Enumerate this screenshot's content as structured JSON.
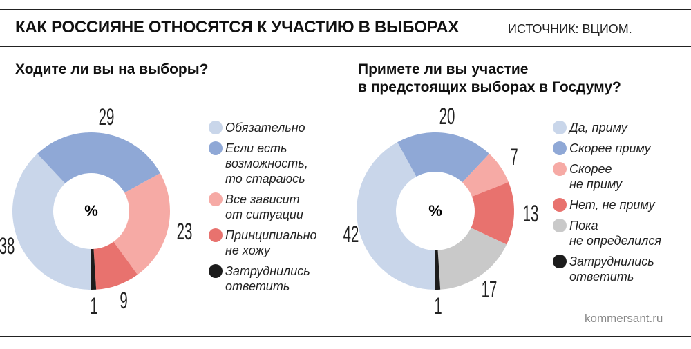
{
  "header": {
    "title": "КАК РОССИЯНЕ ОТНОСЯТСЯ К УЧАСТИЮ В ВЫБОРАХ",
    "source": "ИСТОЧНИК: ВЦИОМ."
  },
  "chart_data": [
    {
      "type": "donut",
      "title": "Ходите ли вы на выборы?",
      "center_label": "%",
      "categories": [
        "Обязательно",
        "Если есть\nвозможность,\nто стараюсь",
        "Все зависит\nот ситуации",
        "Принципиально\nне хожу",
        "Затруднились\nответить"
      ],
      "values": [
        38,
        29,
        23,
        9,
        1
      ],
      "colors": [
        "#c9d6ea",
        "#8fa8d6",
        "#f6aaa5",
        "#e8726e",
        "#1c1c1c"
      ]
    },
    {
      "type": "donut",
      "title": "Примете ли вы участие\nв предстоящих выборах в Госдуму?",
      "center_label": "%",
      "categories": [
        "Да, приму",
        "Скорее приму",
        "Скорее\nне приму",
        "Нет, не приму",
        "Пока\nне определился",
        "Затруднились\nответить"
      ],
      "values": [
        42,
        20,
        7,
        13,
        17,
        1
      ],
      "colors": [
        "#c9d6ea",
        "#8fa8d6",
        "#f6aaa5",
        "#e8726e",
        "#c9c9c9",
        "#1c1c1c"
      ]
    }
  ],
  "footer": "kommersant.ru"
}
